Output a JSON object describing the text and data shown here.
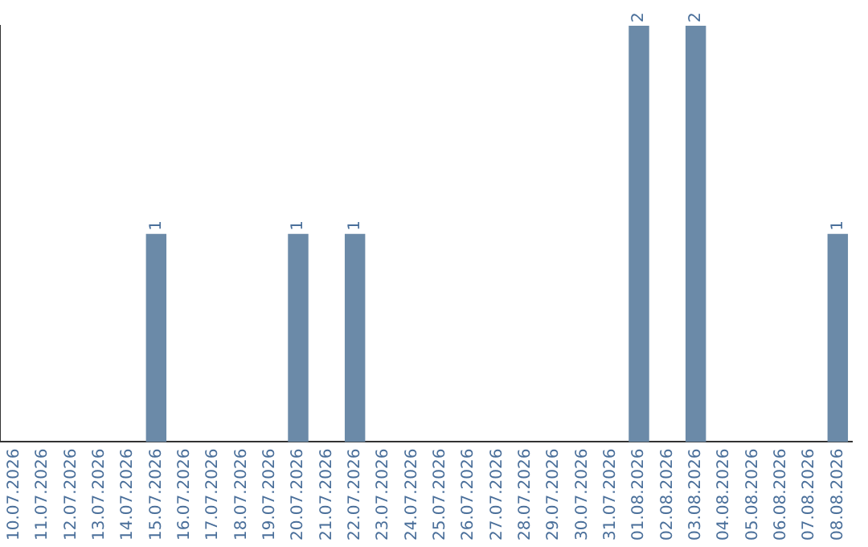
{
  "chart_data": {
    "type": "bar",
    "tick_labels": "x",
    "grid": false,
    "legend": false,
    "categories": [
      "10.07.2026",
      "11.07.2026",
      "12.07.2026",
      "13.07.2026",
      "14.07.2026",
      "15.07.2026",
      "16.07.2026",
      "17.07.2026",
      "18.07.2026",
      "19.07.2026",
      "20.07.2026",
      "21.07.2026",
      "22.07.2026",
      "23.07.2026",
      "24.07.2026",
      "25.07.2026",
      "26.07.2026",
      "27.07.2026",
      "28.07.2026",
      "29.07.2026",
      "30.07.2026",
      "31.07.2026",
      "01.08.2026",
      "02.08.2026",
      "03.08.2026",
      "04.08.2026",
      "05.08.2026",
      "06.08.2026",
      "07.08.2026",
      "08.08.2026"
    ],
    "values": [
      0,
      0,
      0,
      0,
      0,
      1,
      0,
      0,
      0,
      0,
      1,
      0,
      1,
      0,
      0,
      0,
      0,
      0,
      0,
      0,
      0,
      0,
      2,
      0,
      2,
      0,
      0,
      0,
      0,
      1
    ],
    "value_labels": [
      null,
      null,
      null,
      null,
      null,
      "1",
      null,
      null,
      null,
      null,
      "1",
      null,
      "1",
      null,
      null,
      null,
      null,
      null,
      null,
      null,
      null,
      null,
      "2",
      null,
      "2",
      null,
      null,
      null,
      null,
      "1"
    ],
    "color": "#6b8aa8"
  }
}
